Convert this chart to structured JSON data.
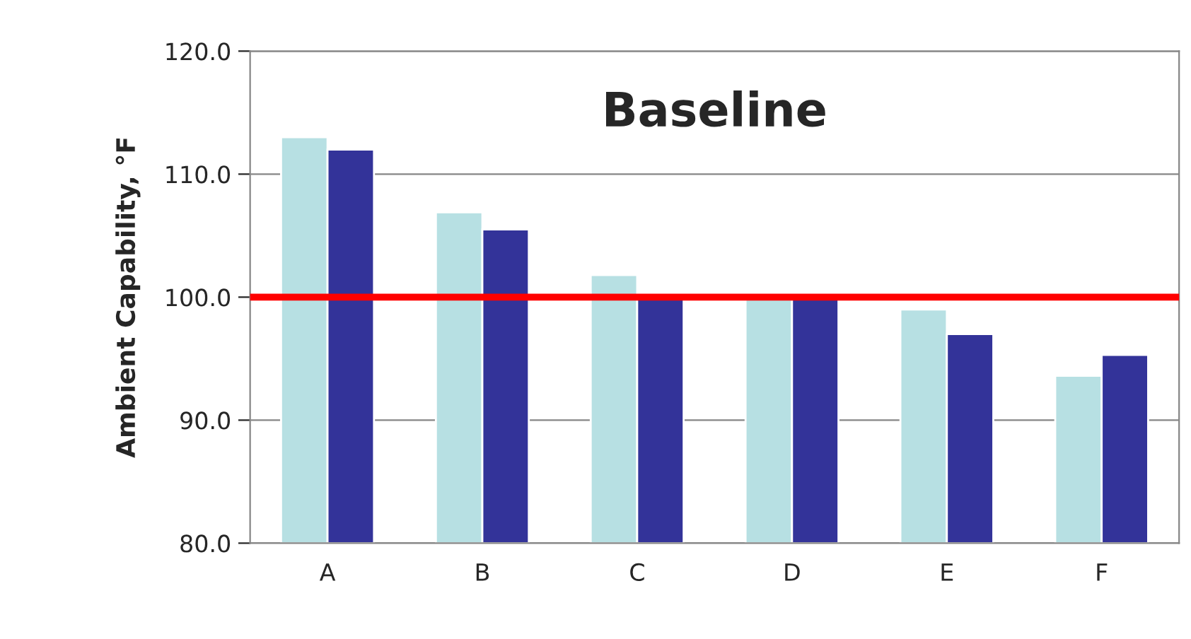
{
  "chart_data": {
    "type": "bar",
    "title": "Baseline",
    "ylabel": "Ambient Capability, °F",
    "categories": [
      "A",
      "B",
      "C",
      "D",
      "E",
      "F"
    ],
    "series": [
      {
        "color": "#b7e0e3",
        "values": [
          113.0,
          106.9,
          101.8,
          100.0,
          99.0,
          93.6
        ]
      },
      {
        "color": "#333399",
        "values": [
          112.0,
          105.5,
          100.0,
          100.0,
          97.0,
          95.3
        ]
      }
    ],
    "ylim": [
      80,
      120
    ],
    "yticks": [
      {
        "value": 80,
        "label": "80.0"
      },
      {
        "value": 90,
        "label": "90.0"
      },
      {
        "value": 100,
        "label": "100.0"
      },
      {
        "value": 110,
        "label": "110.0"
      },
      {
        "value": 120,
        "label": "120.0"
      }
    ],
    "grid": "y",
    "ref_lines": [
      {
        "axis": "y",
        "value": 100,
        "color": "#ff0000",
        "line_style": "solid"
      }
    ]
  }
}
